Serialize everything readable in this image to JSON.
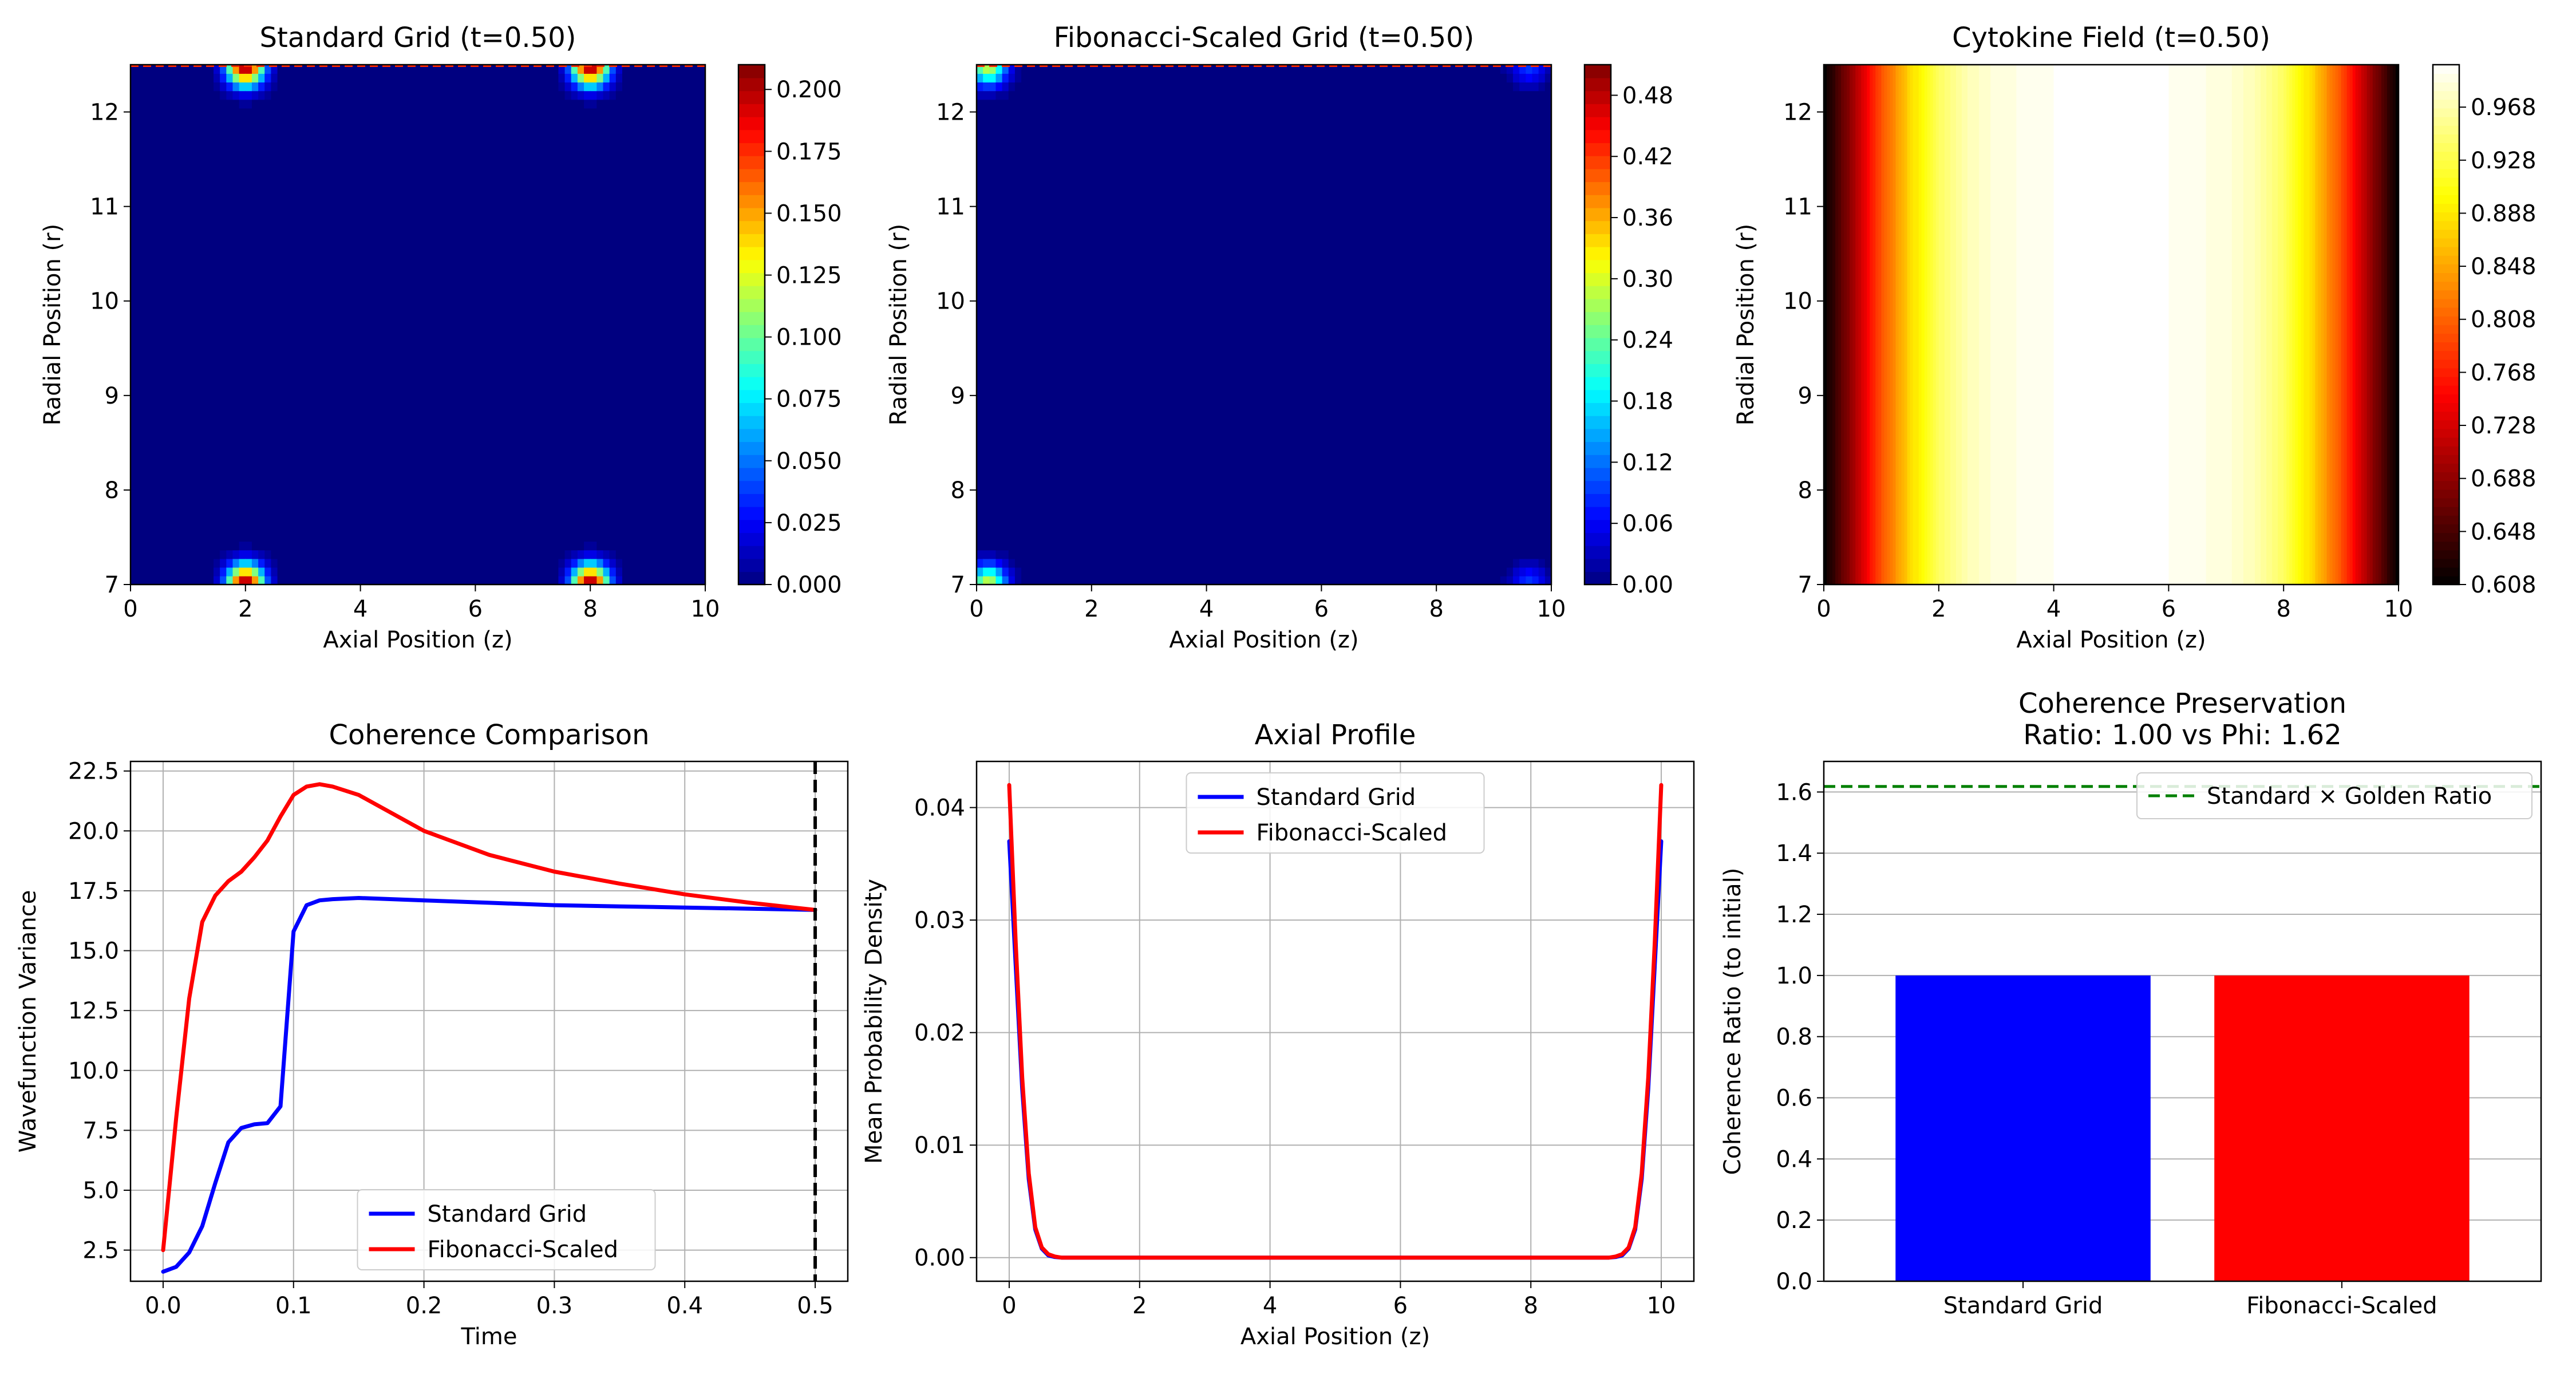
{
  "chart_data": [
    {
      "type": "heatmap",
      "title": "Standard Grid (t=0.50)",
      "xlabel": "Axial Position (z)",
      "ylabel": "Radial Position (r)",
      "xlim": [
        0,
        10
      ],
      "ylim": [
        7,
        12.5
      ],
      "xticks": [
        "0",
        "2",
        "4",
        "6",
        "8",
        "10"
      ],
      "yticks": [
        "7",
        "8",
        "9",
        "10",
        "11",
        "12"
      ],
      "colormap": "jet",
      "colorbar_range": [
        0,
        0.21
      ],
      "colorbar_ticks": [
        "0.000",
        "0.025",
        "0.050",
        "0.075",
        "0.100",
        "0.125",
        "0.150",
        "0.175",
        "0.200"
      ],
      "hotspots": [
        {
          "z": 2,
          "r": 7,
          "peak": 0.21
        },
        {
          "z": 8,
          "r": 7,
          "peak": 0.21
        },
        {
          "z": 2,
          "r": 12.5,
          "peak": 0.21
        },
        {
          "z": 8,
          "r": 12.5,
          "peak": 0.21
        }
      ],
      "background_value": 0
    },
    {
      "type": "heatmap",
      "title": "Fibonacci-Scaled Grid (t=0.50)",
      "xlabel": "Axial Position (z)",
      "ylabel": "Radial Position (r)",
      "xlim": [
        0,
        10
      ],
      "ylim": [
        7,
        12.5
      ],
      "xticks": [
        "0",
        "2",
        "4",
        "6",
        "8",
        "10"
      ],
      "yticks": [
        "7",
        "8",
        "9",
        "10",
        "11",
        "12"
      ],
      "colormap": "jet",
      "colorbar_range": [
        0,
        0.51
      ],
      "colorbar_ticks": [
        "0.00",
        "0.06",
        "0.12",
        "0.18",
        "0.24",
        "0.30",
        "0.36",
        "0.42",
        "0.48"
      ],
      "hotspots": [
        {
          "z": 0.2,
          "r": 7,
          "peak": 0.3
        },
        {
          "z": 0.2,
          "r": 12.5,
          "peak": 0.3
        },
        {
          "z": 9.6,
          "r": 7,
          "peak": 0.1
        },
        {
          "z": 9.6,
          "r": 12.5,
          "peak": 0.1
        }
      ],
      "background_value": 0
    },
    {
      "type": "heatmap",
      "title": "Cytokine Field (t=0.50)",
      "xlabel": "Axial Position (z)",
      "ylabel": "Radial Position (r)",
      "xlim": [
        0,
        10
      ],
      "ylim": [
        7,
        12.5
      ],
      "xticks": [
        "0",
        "2",
        "4",
        "6",
        "8",
        "10"
      ],
      "yticks": [
        "7",
        "8",
        "9",
        "10",
        "11",
        "12"
      ],
      "colormap": "hot",
      "colorbar_range": [
        0.608,
        1.0
      ],
      "colorbar_ticks": [
        "0.608",
        "0.648",
        "0.688",
        "0.728",
        "0.768",
        "0.808",
        "0.848",
        "0.888",
        "0.928",
        "0.968"
      ],
      "z_profile": {
        "z": [
          0,
          0.5,
          1,
          1.5,
          2,
          2.5,
          3,
          4,
          5,
          6,
          7,
          7.5,
          8,
          8.5,
          9,
          9.5,
          10
        ],
        "value": [
          0.608,
          0.7,
          0.8,
          0.88,
          0.94,
          0.975,
          0.99,
          1.0,
          1.0,
          1.0,
          0.99,
          0.975,
          0.94,
          0.88,
          0.8,
          0.7,
          0.608
        ]
      }
    },
    {
      "type": "line",
      "title": "Coherence Comparison",
      "xlabel": "Time",
      "ylabel": "Wavefunction Variance",
      "xlim": [
        -0.025,
        0.525
      ],
      "ylim": [
        1.2,
        22.9
      ],
      "xticks": [
        "0.0",
        "0.1",
        "0.2",
        "0.3",
        "0.4",
        "0.5"
      ],
      "yticks": [
        "2.5",
        "5.0",
        "7.5",
        "10.0",
        "12.5",
        "15.0",
        "17.5",
        "20.0",
        "22.5"
      ],
      "grid": true,
      "legend": "lower center",
      "vline": 0.5,
      "series": [
        {
          "name": "Standard Grid",
          "color": "#0000ff",
          "x": [
            0,
            0.01,
            0.02,
            0.03,
            0.04,
            0.05,
            0.06,
            0.07,
            0.08,
            0.09,
            0.1,
            0.11,
            0.12,
            0.13,
            0.15,
            0.2,
            0.25,
            0.3,
            0.35,
            0.4,
            0.45,
            0.5
          ],
          "y": [
            1.6,
            1.8,
            2.4,
            3.5,
            5.3,
            7.0,
            7.6,
            7.75,
            7.8,
            8.5,
            15.8,
            16.9,
            17.1,
            17.15,
            17.2,
            17.1,
            17.0,
            16.9,
            16.85,
            16.8,
            16.75,
            16.7
          ]
        },
        {
          "name": "Fibonacci-Scaled",
          "color": "#ff0000",
          "x": [
            0,
            0.01,
            0.02,
            0.03,
            0.04,
            0.05,
            0.06,
            0.07,
            0.08,
            0.09,
            0.1,
            0.11,
            0.12,
            0.13,
            0.15,
            0.2,
            0.25,
            0.3,
            0.35,
            0.4,
            0.45,
            0.5
          ],
          "y": [
            2.5,
            8.0,
            13.0,
            16.2,
            17.3,
            17.9,
            18.3,
            18.9,
            19.6,
            20.6,
            21.5,
            21.85,
            21.95,
            21.85,
            21.5,
            20.0,
            19.0,
            18.3,
            17.8,
            17.35,
            17.0,
            16.7
          ]
        }
      ]
    },
    {
      "type": "line",
      "title": "Axial Profile",
      "xlabel": "Axial Position (z)",
      "ylabel": "Mean Probability Density",
      "xlim": [
        -0.5,
        10.5
      ],
      "ylim": [
        -0.0021,
        0.0441
      ],
      "xticks": [
        "0",
        "2",
        "4",
        "6",
        "8",
        "10"
      ],
      "yticks": [
        "0.00",
        "0.01",
        "0.02",
        "0.03",
        "0.04"
      ],
      "grid": true,
      "legend": "upper center",
      "series": [
        {
          "name": "Standard Grid",
          "color": "#0000ff",
          "x": [
            0,
            0.1,
            0.2,
            0.3,
            0.4,
            0.5,
            0.6,
            0.7,
            0.8,
            1.0,
            2,
            4,
            6,
            8,
            9.0,
            9.2,
            9.3,
            9.4,
            9.5,
            9.6,
            9.7,
            9.8,
            9.9,
            10
          ],
          "y": [
            0.037,
            0.026,
            0.015,
            0.007,
            0.0025,
            0.0008,
            0.0002,
            5e-05,
            0,
            0,
            0,
            0,
            0,
            0,
            0,
            0,
            5e-05,
            0.0002,
            0.0008,
            0.0025,
            0.007,
            0.015,
            0.026,
            0.037
          ]
        },
        {
          "name": "Fibonacci-Scaled",
          "color": "#ff0000",
          "x": [
            0,
            0.1,
            0.2,
            0.3,
            0.4,
            0.5,
            0.6,
            0.7,
            0.8,
            1.0,
            2,
            4,
            6,
            8,
            9.0,
            9.2,
            9.3,
            9.4,
            9.5,
            9.6,
            9.7,
            9.8,
            9.9,
            10
          ],
          "y": [
            0.042,
            0.028,
            0.016,
            0.0075,
            0.0027,
            0.0009,
            0.0003,
            0.0001,
            0,
            0,
            0,
            0,
            0,
            0,
            0,
            0,
            0.0001,
            0.0003,
            0.0009,
            0.0027,
            0.0075,
            0.016,
            0.028,
            0.042
          ]
        }
      ]
    },
    {
      "type": "bar",
      "title": "Coherence Preservation",
      "subtitle": "Ratio: 1.00 vs Phi: 1.62",
      "xlabel": "",
      "ylabel": "Coherence Ratio (to initial)",
      "categories": [
        "Standard Grid",
        "Fibonacci-Scaled"
      ],
      "values": [
        1.0,
        1.0
      ],
      "colors": [
        "#0000ff",
        "#ff0000"
      ],
      "ylim": [
        0,
        1.7
      ],
      "yticks": [
        "0.0",
        "0.2",
        "0.4",
        "0.6",
        "0.8",
        "1.0",
        "1.2",
        "1.4",
        "1.6"
      ],
      "grid": true,
      "hline": {
        "value": 1.618,
        "label": "Standard × Golden Ratio",
        "color": "#008000"
      },
      "legend": "upper right"
    }
  ]
}
